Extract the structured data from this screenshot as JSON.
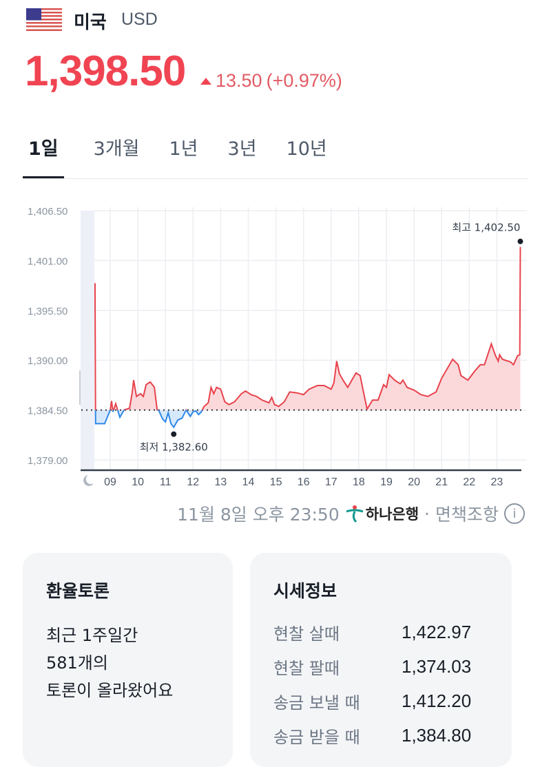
{
  "header": {
    "country": "미국",
    "currency_code": "USD",
    "flag_icon": "us-flag-icon",
    "price": "1,398.50",
    "change": "13.50",
    "change_percent": "(+0.97%)",
    "direction": "up",
    "accent_color": "#f04452"
  },
  "tabs": [
    {
      "label": "1일",
      "active": true
    },
    {
      "label": "3개월",
      "active": false
    },
    {
      "label": "1년",
      "active": false
    },
    {
      "label": "3년",
      "active": false
    },
    {
      "label": "10년",
      "active": false
    }
  ],
  "chart_data": {
    "type": "line",
    "ylim": [
      1379.0,
      1406.5
    ],
    "yticks": [
      "1,406.50",
      "1,401.00",
      "1,395.50",
      "1,390.00",
      "1,384.50",
      "1,379.00"
    ],
    "ytick_values": [
      1406.5,
      1401.0,
      1395.5,
      1390.0,
      1384.5,
      1379.0
    ],
    "xticks": [
      "09",
      "10",
      "11",
      "12",
      "13",
      "14",
      "15",
      "16",
      "17",
      "18",
      "19",
      "20",
      "21",
      "22",
      "23"
    ],
    "xlim_hours": [
      8.45,
      23.85
    ],
    "baseline": 1384.5,
    "grid": true,
    "night_icon": "moon-icon",
    "up_color": "#e8424b",
    "down_color": "#2f88e6",
    "high_label": "최고 1,402.50",
    "low_label": "최저 1,382.60",
    "high": {
      "hour": 23.85,
      "value": 1402.5
    },
    "low": {
      "hour": 11.3,
      "value": 1382.6
    },
    "points": [
      [
        8.45,
        1398.5
      ],
      [
        8.47,
        1383.0
      ],
      [
        8.8,
        1383.0
      ],
      [
        9.0,
        1384.5
      ],
      [
        9.05,
        1385.5
      ],
      [
        9.1,
        1384.3
      ],
      [
        9.2,
        1385.2
      ],
      [
        9.35,
        1383.7
      ],
      [
        9.5,
        1384.5
      ],
      [
        9.7,
        1384.7
      ],
      [
        9.8,
        1386.5
      ],
      [
        9.85,
        1387.8
      ],
      [
        9.95,
        1386.0
      ],
      [
        10.1,
        1386.3
      ],
      [
        10.2,
        1386.0
      ],
      [
        10.3,
        1387.3
      ],
      [
        10.45,
        1387.6
      ],
      [
        10.6,
        1387.0
      ],
      [
        10.7,
        1384.5
      ],
      [
        10.75,
        1384.5
      ],
      [
        10.9,
        1383.5
      ],
      [
        11.0,
        1383.2
      ],
      [
        11.1,
        1384.2
      ],
      [
        11.2,
        1383.0
      ],
      [
        11.3,
        1382.6
      ],
      [
        11.45,
        1383.4
      ],
      [
        11.6,
        1383.6
      ],
      [
        11.75,
        1384.5
      ],
      [
        11.9,
        1383.8
      ],
      [
        12.0,
        1384.3
      ],
      [
        12.1,
        1384.4
      ],
      [
        12.2,
        1384.0
      ],
      [
        12.3,
        1384.3
      ],
      [
        12.4,
        1384.9
      ],
      [
        12.55,
        1385.3
      ],
      [
        12.65,
        1387.0
      ],
      [
        12.75,
        1386.3
      ],
      [
        12.85,
        1387.0
      ],
      [
        13.0,
        1386.8
      ],
      [
        13.15,
        1385.4
      ],
      [
        13.3,
        1385.1
      ],
      [
        13.5,
        1385.4
      ],
      [
        13.75,
        1386.3
      ],
      [
        13.9,
        1386.6
      ],
      [
        14.1,
        1386.2
      ],
      [
        14.3,
        1386.0
      ],
      [
        14.5,
        1385.6
      ],
      [
        14.75,
        1385.3
      ],
      [
        14.85,
        1385.9
      ],
      [
        14.95,
        1385.1
      ],
      [
        15.1,
        1384.9
      ],
      [
        15.3,
        1385.4
      ],
      [
        15.5,
        1386.5
      ],
      [
        15.75,
        1386.4
      ],
      [
        16.0,
        1386.2
      ],
      [
        16.2,
        1386.8
      ],
      [
        16.5,
        1387.2
      ],
      [
        16.75,
        1387.2
      ],
      [
        17.0,
        1386.8
      ],
      [
        17.1,
        1387.5
      ],
      [
        17.2,
        1389.9
      ],
      [
        17.3,
        1388.5
      ],
      [
        17.45,
        1387.7
      ],
      [
        17.6,
        1387.0
      ],
      [
        17.75,
        1387.8
      ],
      [
        17.9,
        1388.6
      ],
      [
        18.05,
        1388.3
      ],
      [
        18.15,
        1386.8
      ],
      [
        18.3,
        1384.6
      ],
      [
        18.5,
        1385.6
      ],
      [
        18.7,
        1385.6
      ],
      [
        18.9,
        1387.3
      ],
      [
        19.0,
        1387.0
      ],
      [
        19.1,
        1388.4
      ],
      [
        19.3,
        1387.8
      ],
      [
        19.5,
        1387.4
      ],
      [
        19.6,
        1387.8
      ],
      [
        19.75,
        1387.0
      ],
      [
        20.0,
        1386.7
      ],
      [
        20.25,
        1386.2
      ],
      [
        20.5,
        1386.0
      ],
      [
        20.8,
        1386.5
      ],
      [
        21.0,
        1388.0
      ],
      [
        21.4,
        1390.1
      ],
      [
        21.6,
        1389.5
      ],
      [
        21.7,
        1388.3
      ],
      [
        21.95,
        1387.8
      ],
      [
        22.2,
        1388.8
      ],
      [
        22.4,
        1389.5
      ],
      [
        22.55,
        1389.5
      ],
      [
        22.8,
        1391.8
      ],
      [
        22.95,
        1390.5
      ],
      [
        23.05,
        1389.9
      ],
      [
        23.1,
        1390.6
      ],
      [
        23.2,
        1390.1
      ],
      [
        23.5,
        1389.8
      ],
      [
        23.6,
        1389.5
      ],
      [
        23.75,
        1390.5
      ],
      [
        23.83,
        1390.6
      ],
      [
        23.85,
        1402.5
      ]
    ]
  },
  "footer": {
    "timestamp": "11월 8일 오후 23:50",
    "bank_name": "하나은행",
    "separator": "·",
    "disclaimer": "면책조항",
    "info_icon": "info-icon"
  },
  "discussion_card": {
    "title": "환율토론",
    "lines": [
      "최근 1주일간",
      "581개의",
      "토론이 올라왔어요"
    ]
  },
  "market_info_card": {
    "title": "시세정보",
    "rows": [
      {
        "label": "현찰 살때",
        "value": "1,422.97"
      },
      {
        "label": "현찰 팔때",
        "value": "1,374.03"
      },
      {
        "label": "송금 보낼 때",
        "value": "1,412.20"
      },
      {
        "label": "송금 받을 때",
        "value": "1,384.80"
      }
    ]
  }
}
